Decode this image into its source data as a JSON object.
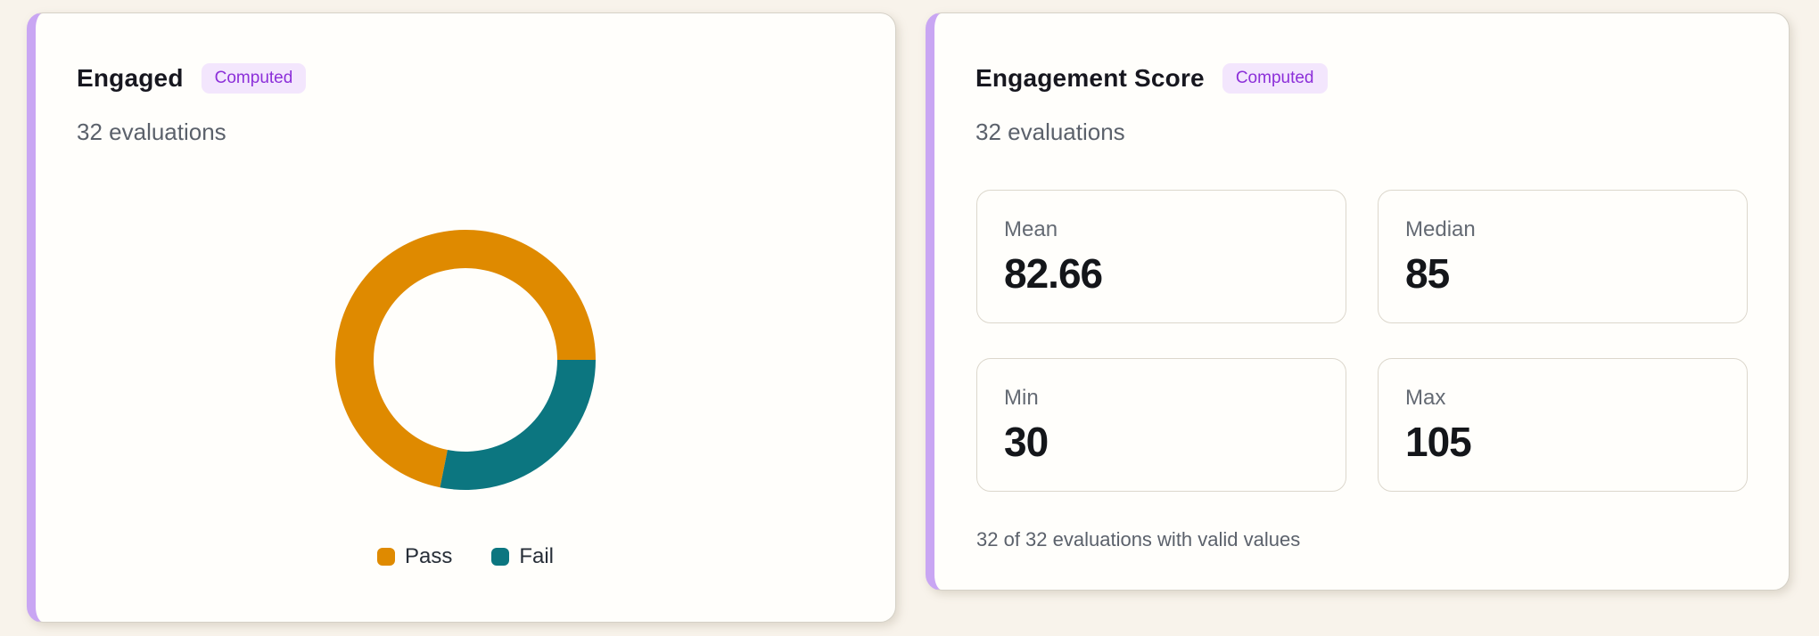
{
  "colors": {
    "page_bg": "#f8f3eb",
    "card_bg": "#fffefb",
    "accent": "#c9a6f3",
    "badge_bg": "#f3e6fd",
    "badge_text": "#8c2fd9"
  },
  "cards": {
    "engaged": {
      "title": "Engaged",
      "badge": "Computed",
      "subtitle": "32 evaluations"
    },
    "engagement_score": {
      "title": "Engagement Score",
      "badge": "Computed",
      "subtitle": "32 evaluations",
      "stats": [
        {
          "label": "Mean",
          "value": "82.66"
        },
        {
          "label": "Median",
          "value": "85"
        },
        {
          "label": "Min",
          "value": "30"
        },
        {
          "label": "Max",
          "value": "105"
        }
      ],
      "footer": "32 of 32 evaluations with valid values"
    }
  },
  "chart_data": {
    "type": "pie",
    "title": "Engaged",
    "categories": [
      "Pass",
      "Fail"
    ],
    "values": [
      23,
      9
    ],
    "total_evaluations": 32,
    "colors": [
      "#df8a00",
      "#0c7680"
    ],
    "donut": true,
    "inner_radius_ratio": 0.705,
    "start_angle_deg": 0,
    "direction": "counterclockwise",
    "legend_position": "bottom"
  }
}
